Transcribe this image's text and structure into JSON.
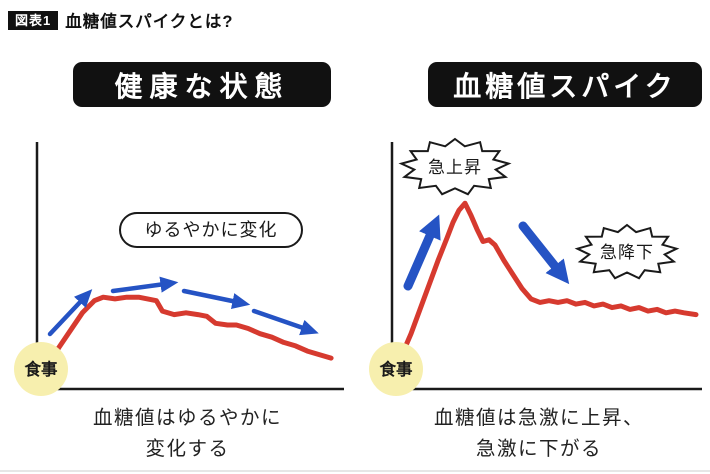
{
  "page": {
    "badge": "図表1",
    "title": "血糖値スパイクとは?"
  },
  "left_panel": {
    "header": "健康な状態",
    "annotation": "ゆるやかに変化",
    "meal_label": "食事",
    "caption_line1": "血糖値はゆるやかに",
    "caption_line2": "変化する"
  },
  "right_panel": {
    "header": "血糖値スパイク",
    "burst_up": "急上昇",
    "burst_down": "急降下",
    "meal_label": "食事",
    "caption_line1": "血糖値は急激に上昇、",
    "caption_line2": "急激に下がる"
  },
  "colors": {
    "curve_red": "#d63a2f",
    "arrow_blue": "#2553c4",
    "meal_yellow": "#f7efae",
    "ink_black": "#1a1a1a"
  },
  "chart_data": [
    {
      "type": "line",
      "panel": "left",
      "title": "健康な状態",
      "caption": "血糖値はゆるやかに変化する",
      "start_label": "食事",
      "annotations": [
        "ゆるやかに変化"
      ],
      "x_range": [
        0,
        100
      ],
      "y_range": [
        0,
        100
      ],
      "axes_labeled": false,
      "normalized": true,
      "points": [
        [
          0,
          2
        ],
        [
          3,
          6
        ],
        [
          6,
          14
        ],
        [
          10,
          24
        ],
        [
          14,
          34
        ],
        [
          18,
          41
        ],
        [
          21,
          43
        ],
        [
          25,
          42
        ],
        [
          29,
          43
        ],
        [
          33,
          43
        ],
        [
          36,
          42
        ],
        [
          39,
          41
        ],
        [
          41,
          35
        ],
        [
          45,
          33
        ],
        [
          49,
          34
        ],
        [
          53,
          33
        ],
        [
          56,
          32
        ],
        [
          59,
          28
        ],
        [
          63,
          27
        ],
        [
          66,
          27
        ],
        [
          70,
          25
        ],
        [
          74,
          22
        ],
        [
          78,
          20
        ],
        [
          82,
          17
        ],
        [
          86,
          15
        ],
        [
          90,
          12
        ],
        [
          94,
          10
        ],
        [
          98,
          8
        ]
      ]
    },
    {
      "type": "line",
      "panel": "right",
      "title": "血糖値スパイク",
      "caption": "血糖値は急激に上昇、急激に下がる",
      "start_label": "食事",
      "annotations": [
        "急上昇",
        "急降下"
      ],
      "x_range": [
        0,
        100
      ],
      "y_range": [
        0,
        100
      ],
      "axes_labeled": false,
      "normalized": true,
      "points": [
        [
          0,
          2
        ],
        [
          2,
          10
        ],
        [
          5,
          22
        ],
        [
          8,
          36
        ],
        [
          11,
          50
        ],
        [
          14,
          64
        ],
        [
          17,
          77
        ],
        [
          19,
          86
        ],
        [
          21,
          93
        ],
        [
          23,
          97
        ],
        [
          25,
          90
        ],
        [
          27,
          82
        ],
        [
          29,
          75
        ],
        [
          31,
          76
        ],
        [
          33,
          73
        ],
        [
          36,
          64
        ],
        [
          39,
          56
        ],
        [
          42,
          48
        ],
        [
          45,
          42
        ],
        [
          48,
          40
        ],
        [
          51,
          41
        ],
        [
          54,
          40
        ],
        [
          57,
          41
        ],
        [
          60,
          39
        ],
        [
          63,
          40
        ],
        [
          66,
          38
        ],
        [
          69,
          39
        ],
        [
          72,
          37
        ],
        [
          75,
          38
        ],
        [
          78,
          36
        ],
        [
          81,
          37
        ],
        [
          84,
          35
        ],
        [
          87,
          36
        ],
        [
          90,
          34
        ],
        [
          93,
          35
        ],
        [
          96,
          34
        ],
        [
          100,
          33
        ]
      ]
    }
  ]
}
